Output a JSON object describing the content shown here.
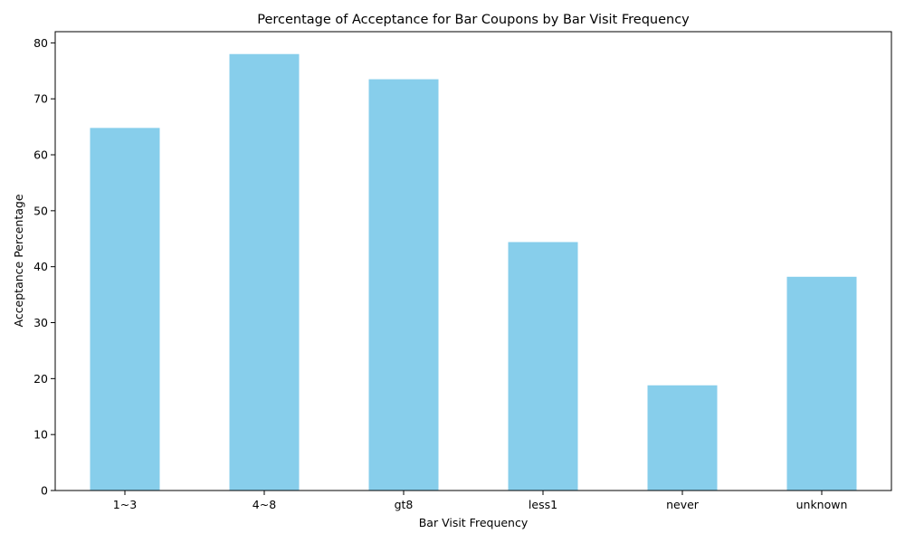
{
  "chart_data": {
    "type": "bar",
    "title": "Percentage of Acceptance for Bar Coupons by Bar Visit Frequency",
    "xlabel": "Bar Visit Frequency",
    "ylabel": "Acceptance Percentage",
    "categories": [
      "1~3",
      "4~8",
      "gt8",
      "less1",
      "never",
      "unknown"
    ],
    "values": [
      64.8,
      78.0,
      73.5,
      44.4,
      18.8,
      38.2
    ],
    "ylim": [
      0,
      82
    ],
    "yticks": [
      0,
      10,
      20,
      30,
      40,
      50,
      60,
      70,
      80
    ],
    "bar_color": "#87ceeb",
    "grid": false
  }
}
